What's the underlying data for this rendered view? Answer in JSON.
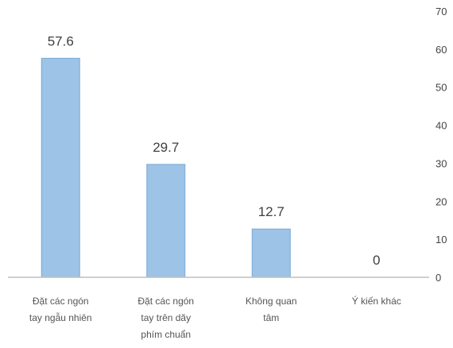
{
  "chart_data": {
    "type": "bar",
    "categories": [
      [
        "Đặt các ngón",
        "tay ngẫu nhiên"
      ],
      [
        "Đặt các ngón",
        "tay trên dãy",
        "phím chuẩn"
      ],
      [
        "Không quan",
        "tâm"
      ],
      [
        "Ý kiến khác"
      ]
    ],
    "values": [
      57.6,
      29.7,
      12.7,
      0
    ],
    "data_labels": [
      "57.6",
      "29.7",
      "12.7",
      "0"
    ],
    "ylim": [
      0,
      70
    ],
    "yticks": [
      "0",
      "10",
      "20",
      "30",
      "40",
      "50",
      "60",
      "70"
    ],
    "y_axis_side": "right",
    "grid": false,
    "legend": false,
    "bar_color": "#9dc3e6",
    "bar_edge_color": "#7aa9d6",
    "axis_color": "#bfbfbf"
  }
}
